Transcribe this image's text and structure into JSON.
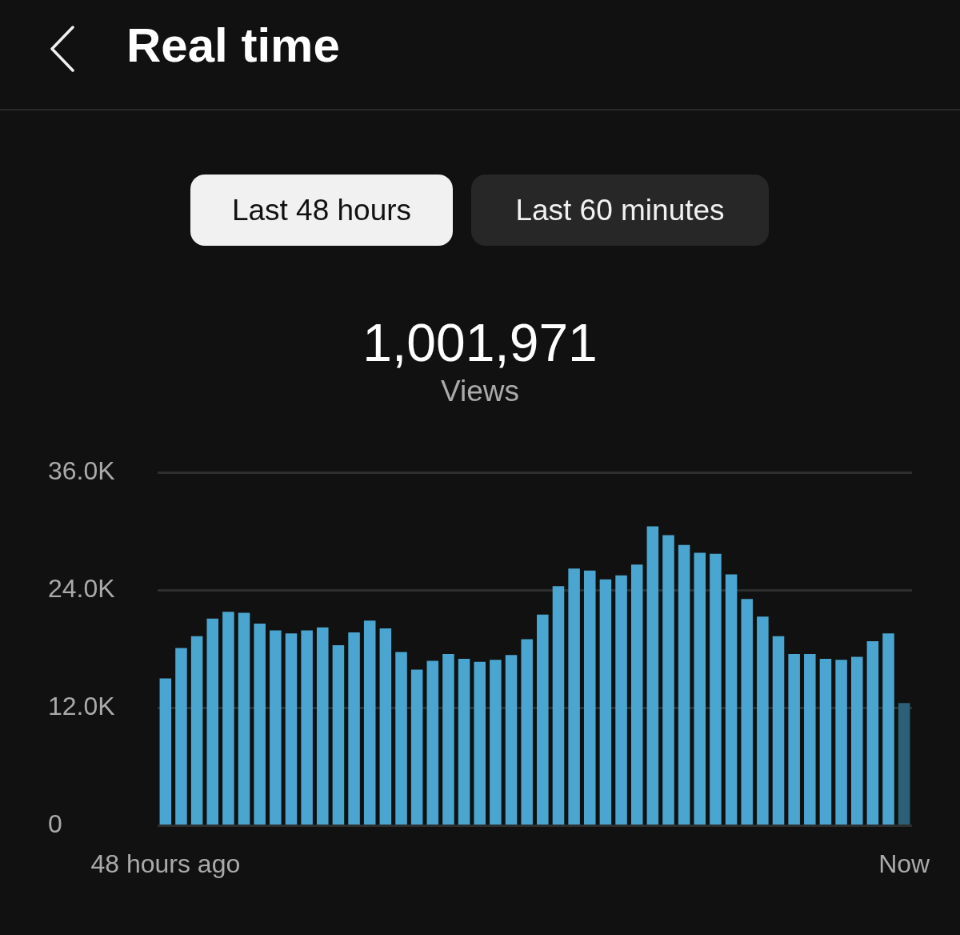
{
  "chart_data": {
    "type": "bar",
    "title": "Real time",
    "annotations": [
      "Last 48 hours",
      "Last 60 minutes",
      "1,001,971",
      "Views"
    ],
    "categories": [
      "48 hours ago",
      null,
      null,
      null,
      null,
      null,
      null,
      null,
      null,
      null,
      null,
      null,
      null,
      null,
      null,
      null,
      null,
      null,
      null,
      null,
      null,
      null,
      null,
      null,
      null,
      null,
      null,
      null,
      null,
      null,
      null,
      null,
      null,
      null,
      null,
      null,
      null,
      null,
      null,
      null,
      null,
      null,
      null,
      null,
      null,
      null,
      null,
      "Now"
    ],
    "values": [
      15.0,
      18.1,
      19.3,
      21.1,
      21.8,
      21.7,
      20.6,
      19.9,
      19.6,
      19.9,
      20.2,
      18.4,
      19.7,
      20.9,
      20.1,
      17.7,
      15.9,
      16.8,
      17.5,
      17.0,
      16.7,
      16.9,
      17.4,
      19.0,
      21.5,
      24.4,
      26.2,
      26.0,
      25.1,
      25.5,
      26.6,
      30.5,
      29.6,
      28.6,
      27.8,
      27.7,
      25.6,
      23.1,
      21.3,
      19.3,
      17.5,
      17.5,
      17.0,
      16.9,
      17.2,
      18.8,
      19.6,
      12.5
    ],
    "colors": [
      "#4aa6d0",
      "#4aa6d0",
      "#4aa6d0",
      "#4aa6d0",
      "#4aa6d0",
      "#4aa6d0",
      "#4aa6d0",
      "#4aa6d0",
      "#4aa6d0",
      "#4aa6d0",
      "#4aa6d0",
      "#4aa6d0",
      "#4aa6d0",
      "#4aa6d0",
      "#4aa6d0",
      "#4aa6d0",
      "#4aa6d0",
      "#4aa6d0",
      "#4aa6d0",
      "#4aa6d0",
      "#4aa6d0",
      "#4aa6d0",
      "#4aa6d0",
      "#4aa6d0",
      "#4aa6d0",
      "#4aa6d0",
      "#4aa6d0",
      "#4aa6d0",
      "#4aa6d0",
      "#4aa6d0",
      "#4aa6d0",
      "#4aa6d0",
      "#4aa6d0",
      "#4aa6d0",
      "#4aa6d0",
      "#4aa6d0",
      "#4aa6d0",
      "#4aa6d0",
      "#4aa6d0",
      "#4aa6d0",
      "#4aa6d0",
      "#4aa6d0",
      "#4aa6d0",
      "#4aa6d0",
      "#4aa6d0",
      "#4aa6d0",
      "#4aa6d0",
      "#2b6175"
    ],
    "ylim": [
      0,
      36
    ],
    "yticks": [
      0,
      {
        "value": 12,
        "label": "12.0K"
      },
      {
        "value": 24,
        "label": "24.0K"
      },
      {
        "value": 36,
        "label": "36.0K"
      }
    ],
    "grid": "y"
  }
}
